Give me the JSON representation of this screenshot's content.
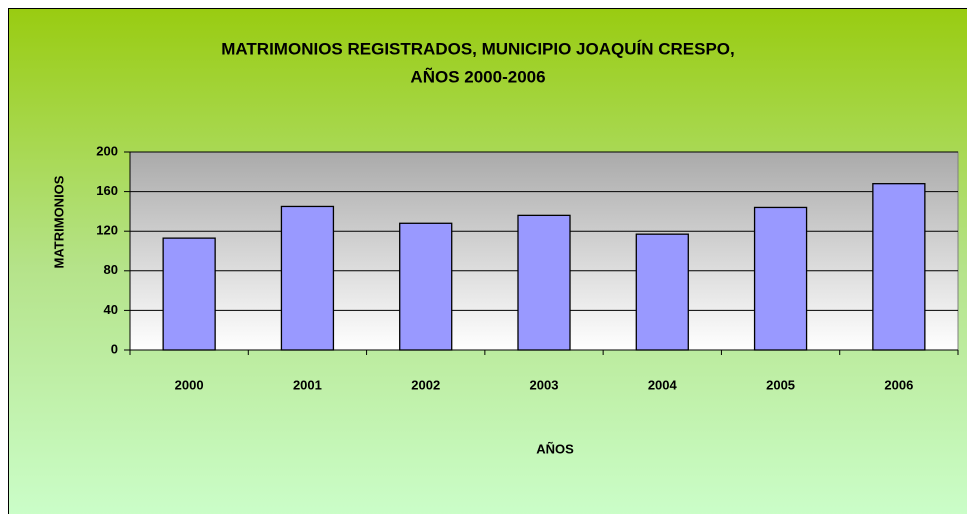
{
  "chart_data": {
    "type": "bar",
    "title": [
      "MATRIMONIOS REGISTRADOS, MUNICIPIO JOAQUÍN CRESPO,",
      "AÑOS 2000-2006"
    ],
    "x_label": "AÑOS",
    "y_label": "MATRIMONIOS",
    "categories": [
      "2000",
      "2001",
      "2002",
      "2003",
      "2004",
      "2005",
      "2006"
    ],
    "values": [
      113,
      145,
      128,
      136,
      117,
      144,
      168
    ],
    "color": "#9999ff",
    "ylim": [
      0,
      200
    ],
    "yticks": [
      0,
      40,
      80,
      120,
      160,
      200
    ],
    "grid": true
  }
}
